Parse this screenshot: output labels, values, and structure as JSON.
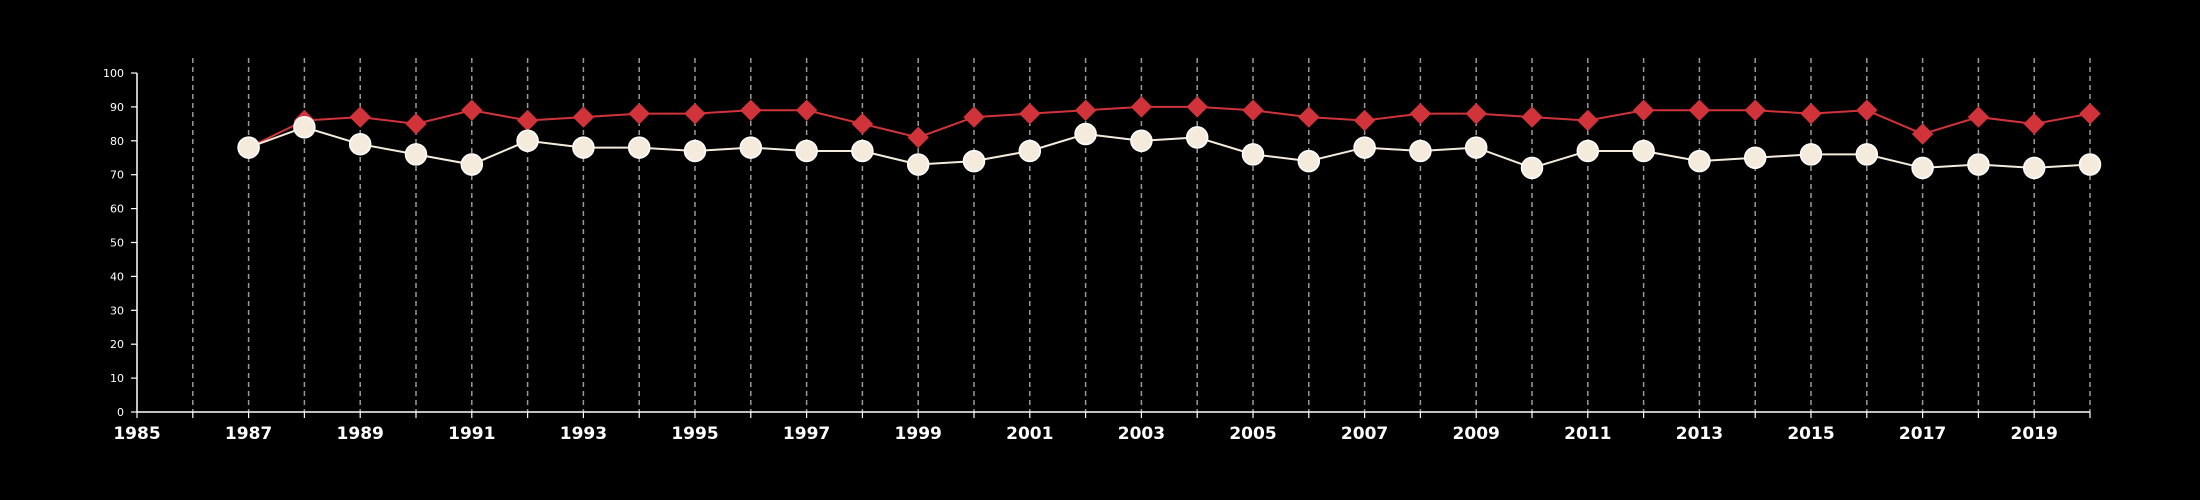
{
  "chart_data": {
    "type": "line",
    "title": "",
    "xlabel": "",
    "ylabel": "",
    "xlim": [
      1985,
      2020
    ],
    "ylim": [
      0,
      100
    ],
    "x_ticks": [
      "1985",
      "1987",
      "1989",
      "1991",
      "1993",
      "1995",
      "1997",
      "1999",
      "2001",
      "2003",
      "2005",
      "2007",
      "2009",
      "2011",
      "2013",
      "2015",
      "2017",
      "2019"
    ],
    "y_ticks": [
      "0",
      "10",
      "20",
      "30",
      "40",
      "50",
      "60",
      "70",
      "80",
      "90",
      "100"
    ],
    "grid": "vertical dashed lines at every year",
    "legend": "none",
    "x": [
      1987,
      1988,
      1989,
      1990,
      1991,
      1992,
      1993,
      1994,
      1995,
      1996,
      1997,
      1998,
      1999,
      2000,
      2001,
      2002,
      2003,
      2004,
      2005,
      2006,
      2007,
      2008,
      2009,
      2010,
      2011,
      2012,
      2013,
      2014,
      2015,
      2016,
      2017,
      2018,
      2019,
      2020
    ],
    "series": [
      {
        "marker": "diamond",
        "color": "#d0343a",
        "values": [
          78,
          86,
          87,
          85,
          89,
          86,
          87,
          88,
          88,
          89,
          89,
          85,
          81,
          87,
          88,
          89,
          90,
          90,
          89,
          87,
          86,
          88,
          88,
          87,
          86,
          89,
          89,
          89,
          88,
          89,
          82,
          87,
          85,
          88
        ]
      },
      {
        "marker": "circle",
        "color": "#f5ebdc",
        "values": [
          78,
          84,
          79,
          76,
          73,
          80,
          78,
          78,
          77,
          78,
          77,
          77,
          73,
          74,
          77,
          82,
          80,
          81,
          76,
          74,
          78,
          77,
          78,
          72,
          77,
          77,
          74,
          75,
          76,
          76,
          72,
          73,
          72,
          73
        ]
      }
    ]
  }
}
